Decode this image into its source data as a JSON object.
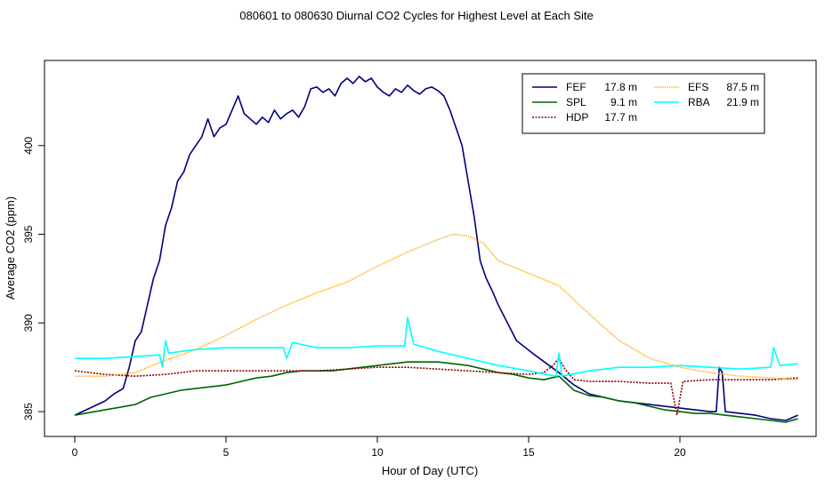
{
  "chart_data": {
    "type": "line",
    "title": "080601  to  080630 Diurnal CO2 Cycles for Highest Level at Each Site",
    "xlabel": "Hour of Day (UTC)",
    "ylabel": "Average CO2 (ppm)",
    "xlim": [
      -1.0,
      24.5
    ],
    "ylim": [
      383.6,
      404.8
    ],
    "xticks": [
      0,
      5,
      10,
      15,
      20
    ],
    "yticks": [
      385,
      390,
      395,
      400
    ],
    "legend_position": "top-right",
    "legend": [
      {
        "name": "FEF",
        "height": "17.8 m",
        "color": "#000080",
        "style": "solid"
      },
      {
        "name": "SPL",
        "height": "9.1 m",
        "color": "#006400",
        "style": "solid"
      },
      {
        "name": "HDP",
        "height": "17.7 m",
        "color": "#8b0000",
        "style": "dashed"
      },
      {
        "name": "EFS",
        "height": "87.5 m",
        "color": "#ffa500",
        "style": "dotted"
      },
      {
        "name": "RBA",
        "height": "21.9 m",
        "color": "#00ffff",
        "style": "solid"
      }
    ],
    "series": [
      {
        "name": "FEF",
        "color": "#000080",
        "points": [
          [
            0,
            384.8
          ],
          [
            0.5,
            385.2
          ],
          [
            1,
            385.6
          ],
          [
            1.3,
            386.0
          ],
          [
            1.6,
            386.3
          ],
          [
            1.8,
            387.5
          ],
          [
            2.0,
            389.0
          ],
          [
            2.2,
            389.5
          ],
          [
            2.4,
            391.0
          ],
          [
            2.6,
            392.5
          ],
          [
            2.8,
            393.5
          ],
          [
            3.0,
            395.5
          ],
          [
            3.2,
            396.5
          ],
          [
            3.4,
            398.0
          ],
          [
            3.6,
            398.5
          ],
          [
            3.8,
            399.5
          ],
          [
            4.0,
            400.0
          ],
          [
            4.2,
            400.5
          ],
          [
            4.4,
            401.5
          ],
          [
            4.6,
            400.5
          ],
          [
            4.8,
            401.0
          ],
          [
            5.0,
            401.2
          ],
          [
            5.2,
            402.0
          ],
          [
            5.4,
            402.8
          ],
          [
            5.6,
            401.8
          ],
          [
            5.8,
            401.5
          ],
          [
            6.0,
            401.2
          ],
          [
            6.2,
            401.6
          ],
          [
            6.4,
            401.3
          ],
          [
            6.6,
            402.0
          ],
          [
            6.8,
            401.5
          ],
          [
            7.0,
            401.8
          ],
          [
            7.2,
            402.0
          ],
          [
            7.4,
            401.6
          ],
          [
            7.6,
            402.2
          ],
          [
            7.8,
            403.2
          ],
          [
            8.0,
            403.3
          ],
          [
            8.2,
            403.0
          ],
          [
            8.4,
            403.2
          ],
          [
            8.6,
            402.8
          ],
          [
            8.8,
            403.5
          ],
          [
            9.0,
            403.8
          ],
          [
            9.2,
            403.5
          ],
          [
            9.4,
            403.9
          ],
          [
            9.6,
            403.6
          ],
          [
            9.8,
            403.8
          ],
          [
            10.0,
            403.3
          ],
          [
            10.2,
            403.0
          ],
          [
            10.4,
            402.8
          ],
          [
            10.6,
            403.2
          ],
          [
            10.8,
            403.0
          ],
          [
            11.0,
            403.4
          ],
          [
            11.2,
            403.1
          ],
          [
            11.4,
            402.9
          ],
          [
            11.6,
            403.2
          ],
          [
            11.8,
            403.3
          ],
          [
            12.0,
            403.1
          ],
          [
            12.2,
            402.8
          ],
          [
            12.4,
            402.0
          ],
          [
            12.6,
            401.0
          ],
          [
            12.8,
            400.0
          ],
          [
            13.0,
            398.0
          ],
          [
            13.2,
            396.0
          ],
          [
            13.4,
            393.5
          ],
          [
            13.6,
            392.5
          ],
          [
            13.8,
            391.8
          ],
          [
            14.0,
            391.0
          ],
          [
            14.3,
            390.0
          ],
          [
            14.6,
            389.0
          ],
          [
            14.9,
            388.6
          ],
          [
            15.2,
            388.2
          ],
          [
            15.6,
            387.7
          ],
          [
            16.0,
            387.2
          ],
          [
            16.5,
            386.5
          ],
          [
            17.0,
            386.0
          ],
          [
            17.5,
            385.8
          ],
          [
            18.0,
            385.6
          ],
          [
            18.5,
            385.5
          ],
          [
            19.0,
            385.4
          ],
          [
            19.5,
            385.3
          ],
          [
            20.0,
            385.2
          ],
          [
            20.5,
            385.1
          ],
          [
            21.0,
            385.0
          ],
          [
            21.2,
            385.0
          ],
          [
            21.3,
            387.5
          ],
          [
            21.4,
            387.2
          ],
          [
            21.5,
            385.0
          ],
          [
            22.0,
            384.9
          ],
          [
            22.5,
            384.8
          ],
          [
            23.0,
            384.6
          ],
          [
            23.5,
            384.5
          ],
          [
            23.9,
            384.8
          ]
        ]
      },
      {
        "name": "SPL",
        "color": "#006400",
        "points": [
          [
            0,
            384.8
          ],
          [
            1,
            385.1
          ],
          [
            2,
            385.4
          ],
          [
            2.5,
            385.8
          ],
          [
            3,
            386.0
          ],
          [
            3.5,
            386.2
          ],
          [
            4,
            386.3
          ],
          [
            4.5,
            386.4
          ],
          [
            5,
            386.5
          ],
          [
            5.5,
            386.7
          ],
          [
            6,
            386.9
          ],
          [
            6.5,
            387.0
          ],
          [
            7,
            387.2
          ],
          [
            7.5,
            387.3
          ],
          [
            8,
            387.3
          ],
          [
            8.5,
            387.3
          ],
          [
            9,
            387.4
          ],
          [
            9.5,
            387.5
          ],
          [
            10,
            387.6
          ],
          [
            10.5,
            387.7
          ],
          [
            11,
            387.8
          ],
          [
            11.5,
            387.8
          ],
          [
            12,
            387.8
          ],
          [
            12.5,
            387.7
          ],
          [
            13,
            387.6
          ],
          [
            13.5,
            387.4
          ],
          [
            14,
            387.2
          ],
          [
            14.5,
            387.1
          ],
          [
            15,
            386.9
          ],
          [
            15.5,
            386.8
          ],
          [
            16,
            387.0
          ],
          [
            16.5,
            386.2
          ],
          [
            17,
            385.9
          ],
          [
            17.5,
            385.8
          ],
          [
            18,
            385.6
          ],
          [
            18.5,
            385.5
          ],
          [
            19,
            385.3
          ],
          [
            19.5,
            385.1
          ],
          [
            20,
            385.0
          ],
          [
            20.5,
            384.9
          ],
          [
            21,
            384.9
          ],
          [
            21.5,
            384.8
          ],
          [
            22,
            384.7
          ],
          [
            22.5,
            384.6
          ],
          [
            23,
            384.5
          ],
          [
            23.5,
            384.4
          ],
          [
            23.9,
            384.6
          ]
        ]
      },
      {
        "name": "HDP",
        "color": "#8b0000",
        "points": [
          [
            0,
            387.3
          ],
          [
            1,
            387.1
          ],
          [
            2,
            387.0
          ],
          [
            3,
            387.1
          ],
          [
            4,
            387.3
          ],
          [
            5,
            387.3
          ],
          [
            6,
            387.3
          ],
          [
            7,
            387.3
          ],
          [
            8,
            387.3
          ],
          [
            9,
            387.4
          ],
          [
            10,
            387.5
          ],
          [
            11,
            387.5
          ],
          [
            12,
            387.4
          ],
          [
            13,
            387.3
          ],
          [
            14,
            387.2
          ],
          [
            15,
            387.1
          ],
          [
            15.5,
            387.2
          ],
          [
            15.8,
            387.6
          ],
          [
            16.0,
            388.0
          ],
          [
            16.2,
            387.4
          ],
          [
            16.5,
            386.8
          ],
          [
            17,
            386.7
          ],
          [
            18,
            386.7
          ],
          [
            19,
            386.6
          ],
          [
            19.7,
            386.6
          ],
          [
            19.9,
            384.8
          ],
          [
            20.1,
            386.7
          ],
          [
            21,
            386.8
          ],
          [
            22,
            386.8
          ],
          [
            23,
            386.8
          ],
          [
            23.9,
            386.9
          ]
        ]
      },
      {
        "name": "EFS",
        "color": "#ffa500",
        "points": [
          [
            0,
            387.0
          ],
          [
            1,
            387.0
          ],
          [
            2,
            387.2
          ],
          [
            3,
            387.9
          ],
          [
            4,
            388.5
          ],
          [
            5,
            389.3
          ],
          [
            6,
            390.2
          ],
          [
            7,
            391.0
          ],
          [
            8,
            391.7
          ],
          [
            9,
            392.3
          ],
          [
            10,
            393.2
          ],
          [
            11,
            394.0
          ],
          [
            12,
            394.7
          ],
          [
            12.5,
            395.0
          ],
          [
            13,
            394.9
          ],
          [
            13.5,
            394.5
          ],
          [
            14,
            393.5
          ],
          [
            15,
            392.8
          ],
          [
            16,
            392.1
          ],
          [
            17,
            390.5
          ],
          [
            18,
            389.0
          ],
          [
            19,
            388.0
          ],
          [
            20,
            387.5
          ],
          [
            21,
            387.2
          ],
          [
            22,
            387.0
          ],
          [
            23,
            386.9
          ],
          [
            23.9,
            386.8
          ]
        ]
      },
      {
        "name": "RBA",
        "color": "#00ffff",
        "points": [
          [
            0,
            388.0
          ],
          [
            1,
            388.0
          ],
          [
            2,
            388.1
          ],
          [
            2.8,
            388.2
          ],
          [
            2.9,
            387.5
          ],
          [
            3.0,
            389.0
          ],
          [
            3.1,
            388.3
          ],
          [
            4,
            388.5
          ],
          [
            5,
            388.6
          ],
          [
            6,
            388.6
          ],
          [
            6.9,
            388.6
          ],
          [
            7.0,
            388.0
          ],
          [
            7.2,
            388.9
          ],
          [
            8,
            388.6
          ],
          [
            9,
            388.6
          ],
          [
            10,
            388.7
          ],
          [
            10.9,
            388.7
          ],
          [
            11.0,
            390.3
          ],
          [
            11.2,
            388.8
          ],
          [
            12,
            388.4
          ],
          [
            13,
            388.0
          ],
          [
            14,
            387.6
          ],
          [
            15,
            387.3
          ],
          [
            15.9,
            387.0
          ],
          [
            16.0,
            388.3
          ],
          [
            16.1,
            387.0
          ],
          [
            17,
            387.3
          ],
          [
            18,
            387.5
          ],
          [
            19,
            387.5
          ],
          [
            20,
            387.6
          ],
          [
            21,
            387.5
          ],
          [
            22,
            387.4
          ],
          [
            23,
            387.5
          ],
          [
            23.1,
            388.6
          ],
          [
            23.3,
            387.6
          ],
          [
            23.9,
            387.7
          ]
        ]
      }
    ]
  }
}
